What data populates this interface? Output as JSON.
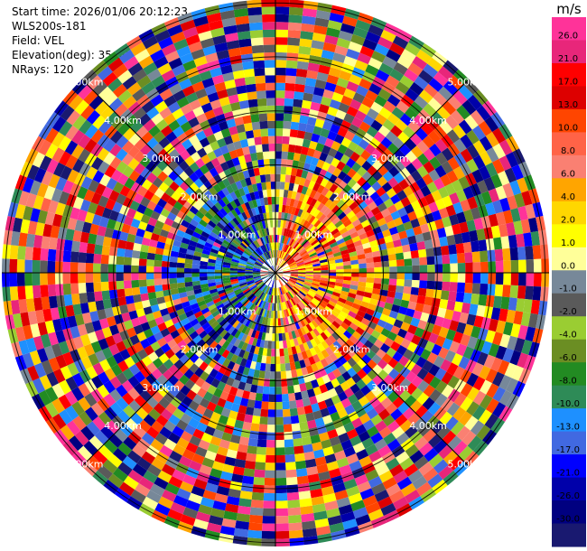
{
  "header": {
    "start_time": "Start time: 2026/01/06 20:12:23",
    "instrument": "WLS200s-181",
    "field": "Field: VEL",
    "elevation": "Elevation(deg): 35.00",
    "nrays": "NRays: 120"
  },
  "chart_data": {
    "type": "heatmap",
    "projection": "polar (PPI scan)",
    "nrays": 120,
    "range_rings_km": [
      "1.00km",
      "2.00km",
      "3.00km",
      "4.00km",
      "5.00km"
    ],
    "colorbar": {
      "unit": "m/s",
      "ticks": [
        "26.0",
        "21.0",
        "17.0",
        "13.0",
        "10.0",
        "8.0",
        "6.0",
        "4.0",
        "2.0",
        "1.0",
        "0.0",
        "-1.0",
        "-2.0",
        "-4.0",
        "-6.0",
        "-8.0",
        "-10.0",
        "-13.0",
        "-17.0",
        "-21.0",
        "-26.0",
        "-30.0"
      ],
      "colors": [
        "#ff3399",
        "#e8267a",
        "#ff0000",
        "#dd0000",
        "#ff4500",
        "#ff6347",
        "#fa8072",
        "#ffa500",
        "#ffd700",
        "#ffff00",
        "#ffff99",
        "#778899",
        "#5a5a5a",
        "#9acd32",
        "#6b8e23",
        "#228b22",
        "#2e8b57",
        "#1e90ff",
        "#4169e1",
        "#0000ff",
        "#0000aa",
        "#000080",
        "#191970"
      ]
    }
  }
}
